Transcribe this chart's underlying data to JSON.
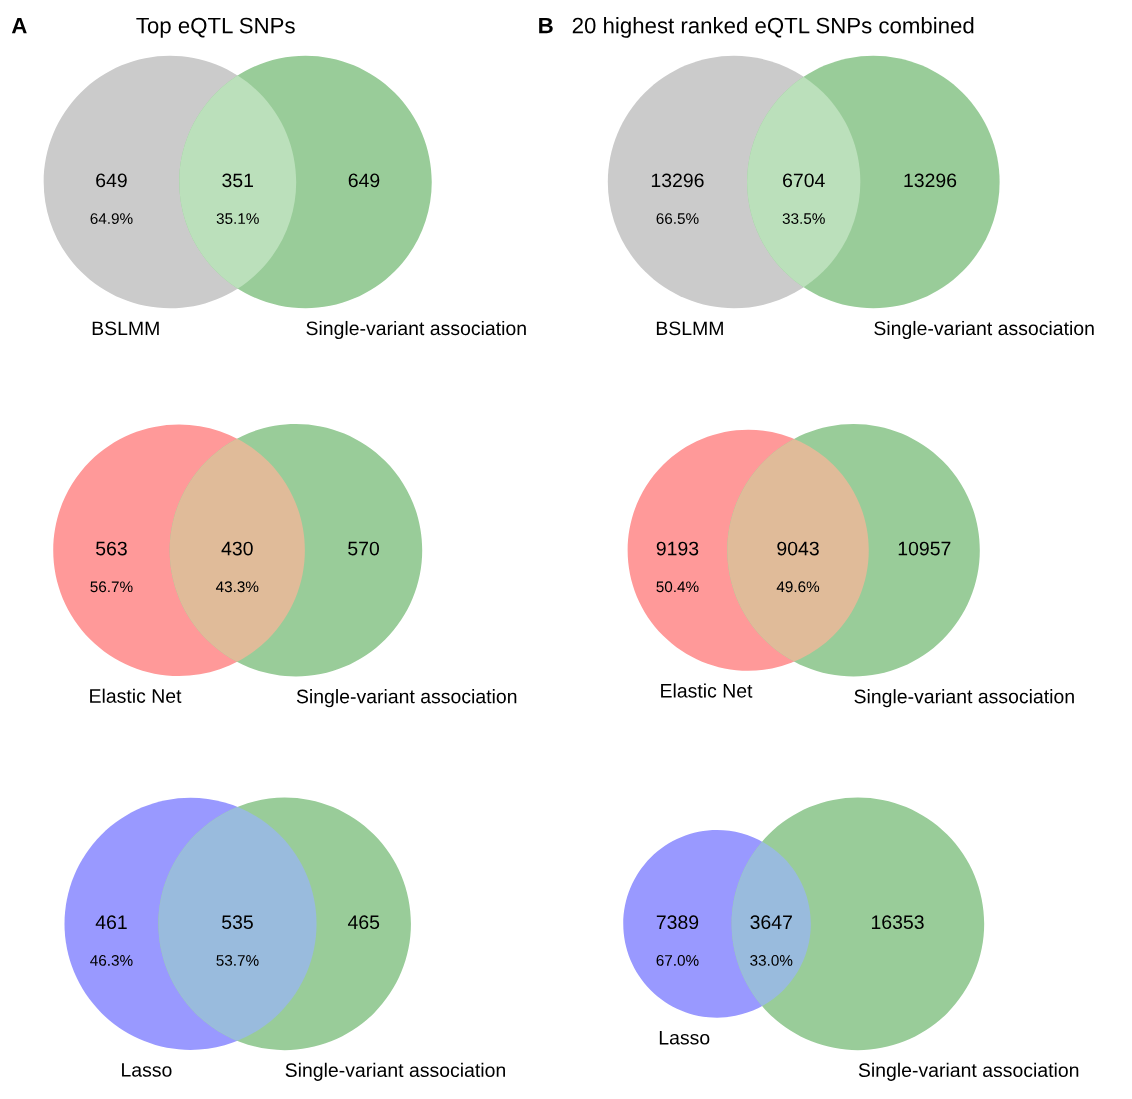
{
  "chart_data": [
    {
      "type": "other",
      "title": "A",
      "subtitle": "Top eQTL SNPs",
      "categories": [
        "BSLMM",
        null,
        "Single-variant association"
      ],
      "values": [
        649,
        351,
        649
      ],
      "data_labels": true,
      "colors": [
        "#cbcbcb",
        "#bbe0bb",
        "#99cc99"
      ],
      "annotations": [
        "64.9%",
        "35.1%"
      ]
    },
    {
      "type": "other",
      "title": "B",
      "subtitle": "20 highest ranked eQTL SNPs combined",
      "categories": [
        "BSLMM",
        null,
        "Single-variant association"
      ],
      "values": [
        13296,
        6704,
        13296
      ],
      "data_labels": true,
      "colors": [
        "#cbcbcb",
        "#bbe0bb",
        "#99cc99"
      ],
      "annotations": [
        "66.5%",
        "33.5%"
      ]
    },
    {
      "type": "other",
      "categories": [
        "Elastic Net",
        null,
        "Single-variant association"
      ],
      "values": [
        563,
        430,
        570
      ],
      "data_labels": true,
      "colors": [
        "#ff9999",
        "#e0bb99",
        "#99cc99"
      ],
      "annotations": [
        "56.7%",
        "43.3%"
      ]
    },
    {
      "type": "other",
      "categories": [
        "Elastic Net",
        null,
        "Single-variant association"
      ],
      "values": [
        9193,
        9043,
        10957
      ],
      "data_labels": true,
      "colors": [
        "#ff9999",
        "#e0bb99",
        "#99cc99"
      ],
      "annotations": [
        "50.4%",
        "49.6%"
      ]
    },
    {
      "type": "other",
      "categories": [
        "Lasso",
        null,
        "Single-variant association"
      ],
      "values": [
        461,
        535,
        465
      ],
      "data_labels": true,
      "colors": [
        "#9999ff",
        "#99bbdd",
        "#99cc99"
      ],
      "annotations": [
        "46.3%",
        "53.7%"
      ]
    },
    {
      "type": "other",
      "categories": [
        "Lasso",
        null,
        "Single-variant association"
      ],
      "values": [
        7389,
        3647,
        16353
      ],
      "data_labels": true,
      "colors": [
        "#9999ff",
        "#99bbdd",
        "#99cc99"
      ],
      "annotations": [
        "67.0%",
        "33.0%"
      ]
    }
  ]
}
